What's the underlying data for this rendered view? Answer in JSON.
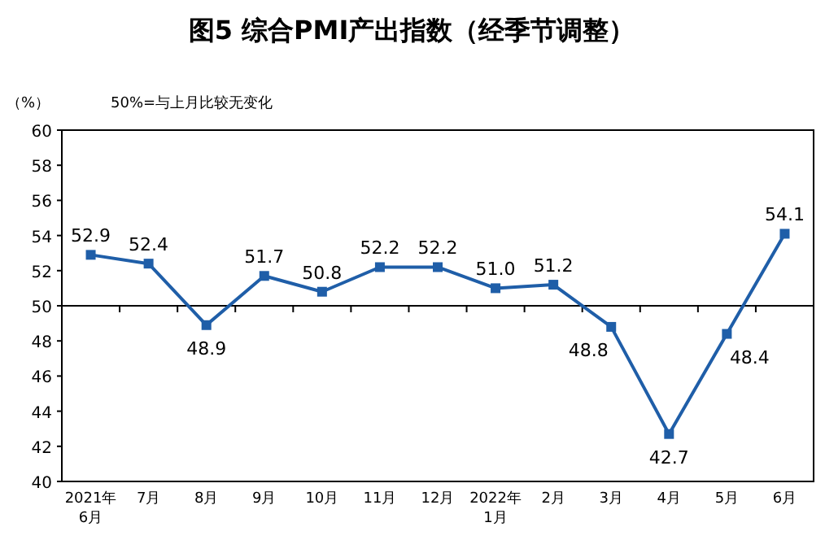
{
  "chart_data": {
    "type": "line",
    "title": "图5 综合PMI产出指数（经季节调整）",
    "ylabel": "（%）",
    "annotations": [
      "50%=与上月比较无变化"
    ],
    "categories": [
      "2021年\n6月",
      "7月",
      "8月",
      "9月",
      "10月",
      "11月",
      "12月",
      "2022年\n1月",
      "2月",
      "3月",
      "4月",
      "5月",
      "6月"
    ],
    "series": [
      {
        "color": "#1f5ea8",
        "values": [
          52.9,
          52.4,
          48.9,
          51.7,
          50.8,
          52.2,
          52.2,
          51.0,
          51.2,
          48.8,
          42.7,
          48.4,
          54.1
        ]
      }
    ],
    "ylim": [
      40,
      60
    ],
    "yticks": [
      40,
      42,
      44,
      46,
      48,
      50,
      52,
      54,
      56,
      58,
      60
    ],
    "ref_lines": [
      {
        "axis": "y",
        "value": 50,
        "color": "#000000"
      }
    ],
    "value_labels": [
      "52.9",
      "52.4",
      "48.9",
      "51.7",
      "50.8",
      "52.2",
      "52.2",
      "51.0",
      "51.2",
      "48.8",
      "42.7",
      "48.4",
      "54.1"
    ],
    "marker": "square",
    "grid": false
  }
}
